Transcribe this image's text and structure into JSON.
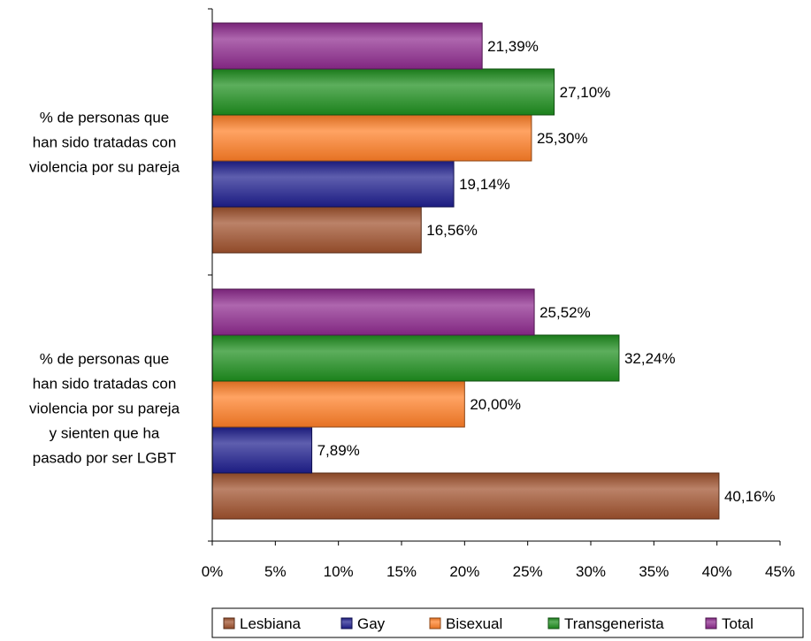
{
  "chart_data": {
    "type": "bar",
    "orientation": "horizontal",
    "categories": [
      [
        "% de personas que",
        "han sido tratadas con",
        "violencia por su pareja"
      ],
      [
        "% de personas que",
        "han sido tratadas con",
        "violencia por su pareja",
        "y sienten que ha",
        "pasado por ser LGBT"
      ]
    ],
    "series": [
      {
        "name": "Lesbiana",
        "color": "#A0522D",
        "values": [
          16.56,
          40.16
        ],
        "labels": [
          "16,56%",
          "40,16%"
        ]
      },
      {
        "name": "Gay",
        "color": "#1F1F8F",
        "values": [
          19.14,
          7.89
        ],
        "labels": [
          "19,14%",
          "7,89%"
        ]
      },
      {
        "name": "Bisexual",
        "color": "#FF7F27",
        "values": [
          25.3,
          20.0
        ],
        "labels": [
          "25,30%",
          "20,00%"
        ]
      },
      {
        "name": "Transgenerista",
        "color": "#1E8F1E",
        "values": [
          27.1,
          32.24
        ],
        "labels": [
          "27,10%",
          "32,24%"
        ]
      },
      {
        "name": "Total",
        "color": "#8E2A8E",
        "values": [
          21.39,
          25.52
        ],
        "labels": [
          "21,39%",
          "25,52%"
        ]
      }
    ],
    "xlim": [
      0,
      45
    ],
    "xticks": [
      0,
      5,
      10,
      15,
      20,
      25,
      30,
      35,
      40,
      45
    ],
    "xtick_labels": [
      "0%",
      "5%",
      "10%",
      "15%",
      "20%",
      "25%",
      "30%",
      "35%",
      "40%",
      "45%"
    ],
    "grid": false,
    "legend_position": "bottom",
    "title": "",
    "xlabel": "",
    "ylabel": ""
  }
}
